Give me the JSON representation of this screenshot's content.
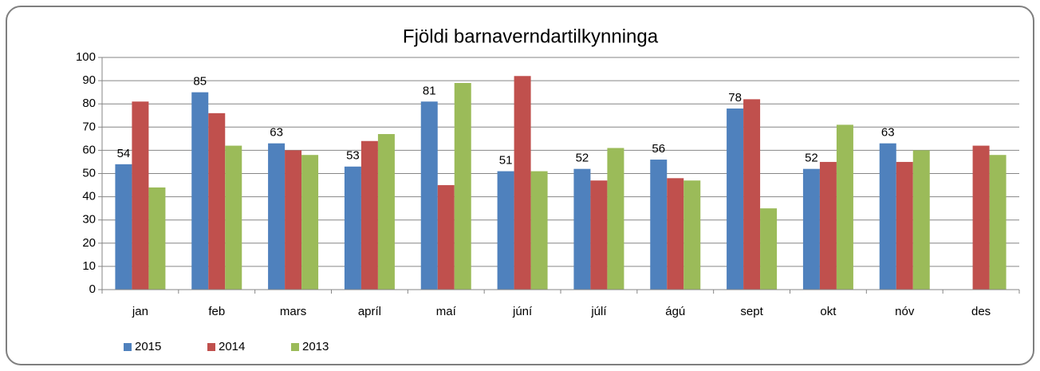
{
  "chart_data": {
    "type": "bar",
    "title": "Fjöldi barnaverndartilkynninga",
    "categories": [
      "jan",
      "feb",
      "mars",
      "apríl",
      "maí",
      "júní",
      "júlí",
      "ágú",
      "sept",
      "okt",
      "nóv",
      "des"
    ],
    "series": [
      {
        "name": "2015",
        "color": "#4f81bd",
        "show_labels": true,
        "values": [
          54,
          85,
          63,
          53,
          81,
          51,
          52,
          56,
          78,
          52,
          63,
          null
        ]
      },
      {
        "name": "2014",
        "color": "#c0504d",
        "show_labels": false,
        "values": [
          81,
          76,
          60,
          64,
          45,
          92,
          47,
          48,
          82,
          55,
          55,
          62
        ]
      },
      {
        "name": "2013",
        "color": "#9bbb59",
        "show_labels": false,
        "values": [
          44,
          62,
          58,
          67,
          89,
          51,
          61,
          47,
          35,
          71,
          60,
          58
        ]
      }
    ],
    "ylim": [
      0,
      100
    ],
    "yticks": [
      0,
      10,
      20,
      30,
      40,
      50,
      60,
      70,
      80,
      90,
      100
    ],
    "grid": true,
    "legend": "bottom-left"
  }
}
